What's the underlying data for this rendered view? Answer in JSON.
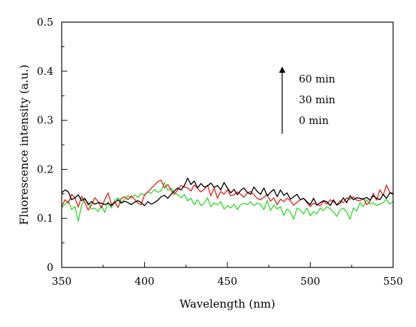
{
  "chart_data": {
    "type": "line",
    "title": "",
    "xlabel": "Wavelength (nm)",
    "ylabel": "Fluorescence intensity (a.u.)",
    "xlim": [
      350,
      550
    ],
    "ylim": [
      0,
      0.5
    ],
    "xticks": [
      350,
      400,
      450,
      500,
      550
    ],
    "xtick_labels": [
      "350",
      "400",
      "450",
      "500",
      "550"
    ],
    "yticks": [
      0,
      0.1,
      0.2,
      0.3,
      0.4,
      0.5
    ],
    "ytick_labels": [
      "0",
      "0.1",
      "0.2",
      "0.3",
      "0.4",
      "0.5"
    ],
    "grid": false,
    "legend": "none",
    "annotations": {
      "arrow_direction": "up",
      "labels": [
        "60 min",
        "30 min",
        "0 min"
      ]
    },
    "series": [
      {
        "color": "#000000",
        "x": [
          350,
          352,
          354,
          356,
          358,
          360,
          362,
          364,
          366,
          368,
          370,
          372,
          374,
          376,
          378,
          380,
          382,
          384,
          386,
          388,
          390,
          392,
          394,
          396,
          398,
          400,
          402,
          404,
          406,
          408,
          410,
          412,
          414,
          416,
          418,
          420,
          422,
          424,
          426,
          428,
          430,
          432,
          434,
          436,
          438,
          440,
          442,
          444,
          446,
          448,
          450,
          452,
          454,
          456,
          458,
          460,
          462,
          464,
          466,
          468,
          470,
          472,
          474,
          476,
          478,
          480,
          482,
          484,
          486,
          488,
          490,
          492,
          494,
          496,
          498,
          500,
          502,
          504,
          506,
          508,
          510,
          512,
          514,
          516,
          518,
          520,
          522,
          524,
          526,
          528,
          530,
          532,
          534,
          536,
          538,
          540,
          542,
          544,
          546,
          548,
          550
        ],
        "y": [
          0.152,
          0.158,
          0.154,
          0.138,
          0.142,
          0.148,
          0.136,
          0.141,
          0.128,
          0.134,
          0.129,
          0.132,
          0.131,
          0.128,
          0.131,
          0.126,
          0.132,
          0.138,
          0.131,
          0.135,
          0.132,
          0.128,
          0.133,
          0.136,
          0.132,
          0.126,
          0.134,
          0.129,
          0.132,
          0.137,
          0.144,
          0.147,
          0.141,
          0.149,
          0.156,
          0.162,
          0.158,
          0.167,
          0.182,
          0.169,
          0.176,
          0.162,
          0.171,
          0.164,
          0.166,
          0.172,
          0.163,
          0.167,
          0.158,
          0.173,
          0.162,
          0.152,
          0.159,
          0.148,
          0.157,
          0.162,
          0.153,
          0.149,
          0.164,
          0.155,
          0.149,
          0.162,
          0.146,
          0.153,
          0.159,
          0.144,
          0.158,
          0.147,
          0.152,
          0.139,
          0.144,
          0.149,
          0.138,
          0.141,
          0.134,
          0.128,
          0.141,
          0.127,
          0.132,
          0.136,
          0.134,
          0.126,
          0.138,
          0.127,
          0.131,
          0.142,
          0.132,
          0.146,
          0.138,
          0.142,
          0.141,
          0.139,
          0.143,
          0.137,
          0.146,
          0.141,
          0.138,
          0.149,
          0.141,
          0.152,
          0.149
        ]
      },
      {
        "color": "#e6231c",
        "x": [
          350,
          352,
          354,
          356,
          358,
          360,
          362,
          364,
          366,
          368,
          370,
          372,
          374,
          376,
          378,
          380,
          382,
          384,
          386,
          388,
          390,
          392,
          394,
          396,
          398,
          400,
          402,
          404,
          406,
          408,
          410,
          412,
          414,
          416,
          418,
          420,
          422,
          424,
          426,
          428,
          430,
          432,
          434,
          436,
          438,
          440,
          442,
          444,
          446,
          448,
          450,
          452,
          454,
          456,
          458,
          460,
          462,
          464,
          466,
          468,
          470,
          472,
          474,
          476,
          478,
          480,
          482,
          484,
          486,
          488,
          490,
          492,
          494,
          496,
          498,
          500,
          502,
          504,
          506,
          508,
          510,
          512,
          514,
          516,
          518,
          520,
          522,
          524,
          526,
          528,
          530,
          532,
          534,
          536,
          538,
          540,
          542,
          544,
          546,
          548,
          550
        ],
        "y": [
          0.124,
          0.138,
          0.131,
          0.149,
          0.142,
          0.123,
          0.145,
          0.132,
          0.117,
          0.128,
          0.142,
          0.134,
          0.121,
          0.138,
          0.152,
          0.128,
          0.134,
          0.122,
          0.141,
          0.144,
          0.138,
          0.146,
          0.139,
          0.131,
          0.128,
          0.148,
          0.154,
          0.161,
          0.168,
          0.175,
          0.178,
          0.162,
          0.169,
          0.157,
          0.149,
          0.158,
          0.167,
          0.164,
          0.162,
          0.156,
          0.168,
          0.161,
          0.154,
          0.159,
          0.168,
          0.146,
          0.162,
          0.141,
          0.155,
          0.149,
          0.158,
          0.146,
          0.148,
          0.154,
          0.149,
          0.143,
          0.152,
          0.155,
          0.148,
          0.141,
          0.138,
          0.143,
          0.149,
          0.135,
          0.142,
          0.128,
          0.139,
          0.134,
          0.141,
          0.136,
          0.127,
          0.133,
          0.138,
          0.141,
          0.132,
          0.124,
          0.131,
          0.128,
          0.126,
          0.135,
          0.129,
          0.138,
          0.134,
          0.128,
          0.136,
          0.132,
          0.142,
          0.139,
          0.144,
          0.137,
          0.136,
          0.141,
          0.128,
          0.134,
          0.151,
          0.137,
          0.158,
          0.147,
          0.168,
          0.153,
          0.151
        ]
      },
      {
        "color": "#2fdc2f",
        "x": [
          350,
          352,
          354,
          356,
          358,
          360,
          362,
          364,
          366,
          368,
          370,
          372,
          374,
          376,
          378,
          380,
          382,
          384,
          386,
          388,
          390,
          392,
          394,
          396,
          398,
          400,
          402,
          404,
          406,
          408,
          410,
          412,
          414,
          416,
          418,
          420,
          422,
          424,
          426,
          428,
          430,
          432,
          434,
          436,
          438,
          440,
          442,
          444,
          446,
          448,
          450,
          452,
          454,
          456,
          458,
          460,
          462,
          464,
          466,
          468,
          470,
          472,
          474,
          476,
          478,
          480,
          482,
          484,
          486,
          488,
          490,
          492,
          494,
          496,
          498,
          500,
          502,
          504,
          506,
          508,
          510,
          512,
          514,
          516,
          518,
          520,
          522,
          524,
          526,
          528,
          530,
          532,
          534,
          536,
          538,
          540,
          542,
          544,
          546,
          548,
          550
        ],
        "y": [
          0.121,
          0.129,
          0.136,
          0.118,
          0.124,
          0.094,
          0.127,
          0.139,
          0.132,
          0.119,
          0.121,
          0.114,
          0.126,
          0.112,
          0.134,
          0.121,
          0.137,
          0.142,
          0.133,
          0.139,
          0.146,
          0.141,
          0.148,
          0.143,
          0.151,
          0.147,
          0.154,
          0.151,
          0.159,
          0.153,
          0.156,
          0.173,
          0.157,
          0.162,
          0.153,
          0.148,
          0.142,
          0.149,
          0.136,
          0.141,
          0.128,
          0.138,
          0.126,
          0.131,
          0.142,
          0.124,
          0.131,
          0.128,
          0.134,
          0.119,
          0.126,
          0.121,
          0.129,
          0.118,
          0.128,
          0.131,
          0.128,
          0.134,
          0.126,
          0.131,
          0.129,
          0.118,
          0.137,
          0.116,
          0.127,
          0.119,
          0.124,
          0.106,
          0.119,
          0.113,
          0.098,
          0.121,
          0.117,
          0.109,
          0.121,
          0.105,
          0.114,
          0.109,
          0.121,
          0.116,
          0.124,
          0.119,
          0.113,
          0.104,
          0.117,
          0.121,
          0.113,
          0.098,
          0.121,
          0.115,
          0.132,
          0.124,
          0.138,
          0.129,
          0.132,
          0.126,
          0.129,
          0.132,
          0.139,
          0.129,
          0.135
        ]
      }
    ]
  }
}
